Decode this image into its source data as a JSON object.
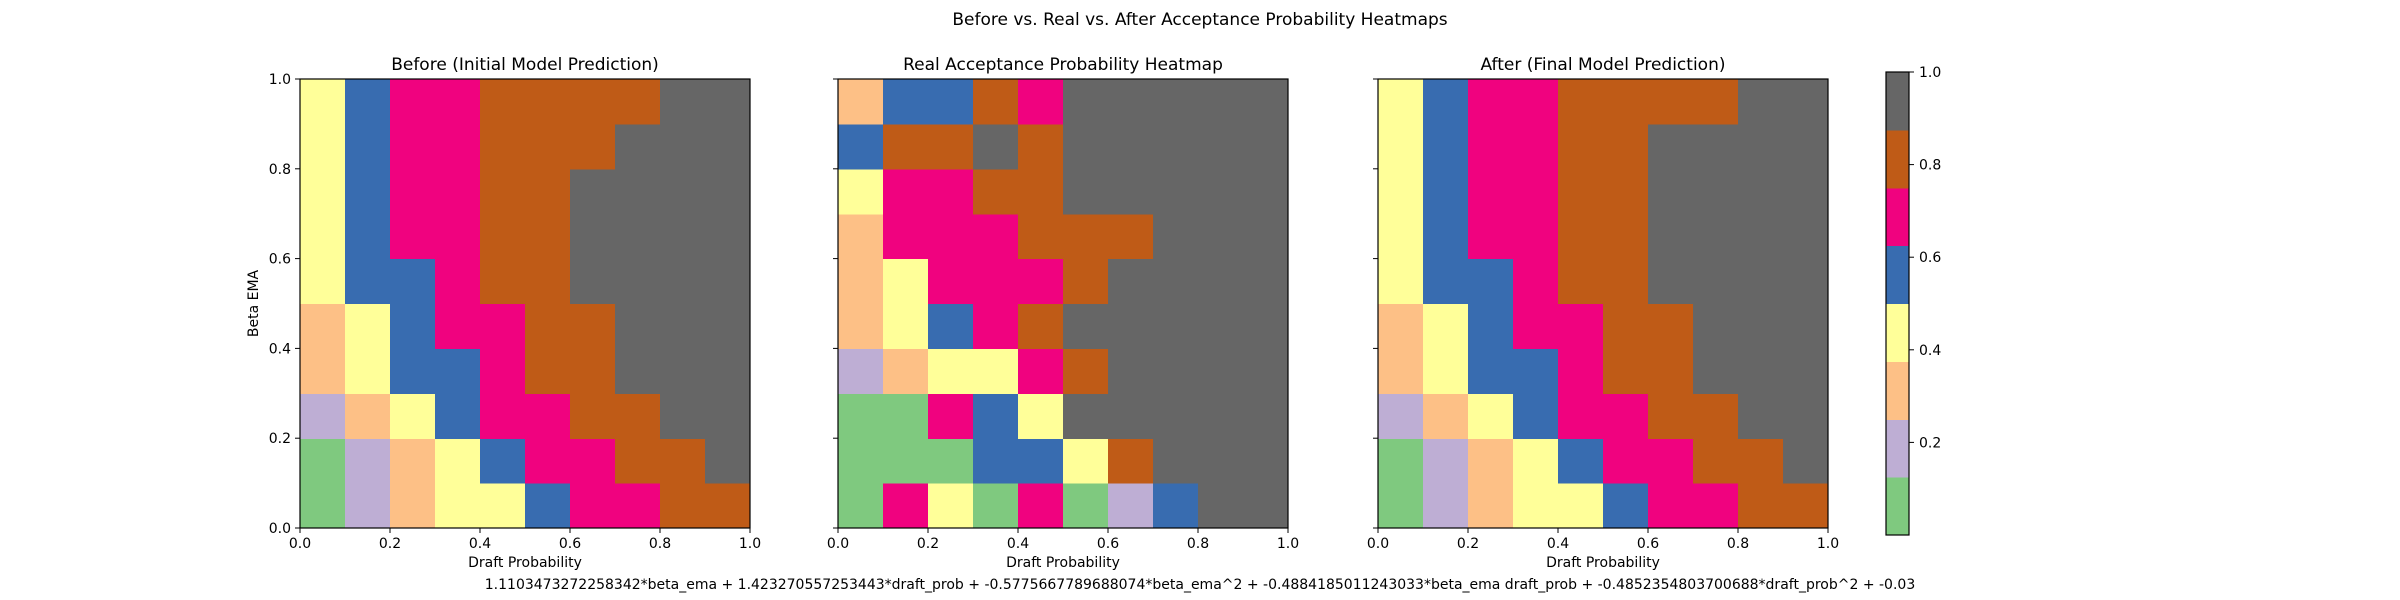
{
  "figure": {
    "suptitle": "Before vs. Real vs. After Acceptance Probability Heatmaps",
    "footer": "1.1103473272258342*beta_ema + 1.423270557253443*draft_prob + -0.5775667789688074*beta_ema^2 + -0.4884185011243033*beta_ema draft_prob + -0.4852354803700688*draft_prob^2 + -0.03"
  },
  "colorbar": {
    "colors": [
      "#7fc97f",
      "#beaed4",
      "#fdc086",
      "#ffff99",
      "#386cb0",
      "#f0027f",
      "#bf5b17",
      "#666666"
    ],
    "ticks": [
      0.2,
      0.4,
      0.6,
      0.8,
      1.0
    ],
    "tick_labels": [
      "0.2",
      "0.4",
      "0.6",
      "0.8",
      "1.0"
    ],
    "range": [
      0,
      1
    ]
  },
  "chart_data": [
    {
      "type": "heatmap",
      "title": "Before (Initial Model Prediction)",
      "xlabel": "Draft Probability",
      "ylabel": "Beta EMA",
      "xlim": [
        0,
        1
      ],
      "ylim": [
        0,
        1
      ],
      "xticks": [
        "0.0",
        "0.2",
        "0.4",
        "0.6",
        "0.8",
        "1.0"
      ],
      "yticks": [
        "0.0",
        "0.2",
        "0.4",
        "0.6",
        "0.8",
        "1.0"
      ],
      "grid_rows_bottom_to_top": [
        [
          0,
          1,
          2,
          3,
          3,
          4,
          5,
          5,
          6,
          6
        ],
        [
          0,
          1,
          2,
          3,
          4,
          5,
          5,
          6,
          6,
          7
        ],
        [
          1,
          2,
          3,
          4,
          5,
          5,
          6,
          6,
          7,
          7
        ],
        [
          2,
          3,
          4,
          4,
          5,
          6,
          6,
          7,
          7,
          7
        ],
        [
          2,
          3,
          4,
          5,
          5,
          6,
          6,
          7,
          7,
          7
        ],
        [
          3,
          4,
          4,
          5,
          6,
          6,
          7,
          7,
          7,
          7
        ],
        [
          3,
          4,
          5,
          5,
          6,
          6,
          7,
          7,
          7,
          7
        ],
        [
          3,
          4,
          5,
          5,
          6,
          6,
          7,
          7,
          7,
          7
        ],
        [
          3,
          4,
          5,
          5,
          6,
          6,
          6,
          7,
          7,
          7
        ],
        [
          3,
          4,
          5,
          5,
          6,
          6,
          6,
          6,
          7,
          7
        ]
      ]
    },
    {
      "type": "heatmap",
      "title": "Real Acceptance Probability Heatmap",
      "xlabel": "Draft Probability",
      "ylabel": "",
      "xlim": [
        0,
        1
      ],
      "ylim": [
        0,
        1
      ],
      "xticks": [
        "0.0",
        "0.2",
        "0.4",
        "0.6",
        "0.8",
        "1.0"
      ],
      "yticks": [],
      "grid_rows_bottom_to_top": [
        [
          0,
          5,
          3,
          0,
          5,
          0,
          1,
          4,
          7,
          7
        ],
        [
          0,
          0,
          0,
          4,
          4,
          3,
          6,
          7,
          7,
          7
        ],
        [
          0,
          0,
          5,
          4,
          3,
          7,
          7,
          7,
          7,
          7
        ],
        [
          1,
          2,
          3,
          3,
          5,
          6,
          7,
          7,
          7,
          7
        ],
        [
          2,
          3,
          4,
          5,
          6,
          7,
          7,
          7,
          7,
          7
        ],
        [
          2,
          3,
          5,
          5,
          5,
          6,
          7,
          7,
          7,
          7
        ],
        [
          2,
          5,
          5,
          5,
          6,
          6,
          6,
          7,
          7,
          7
        ],
        [
          3,
          5,
          5,
          6,
          6,
          7,
          7,
          7,
          7,
          7
        ],
        [
          4,
          6,
          6,
          7,
          6,
          7,
          7,
          7,
          7,
          7
        ],
        [
          2,
          4,
          4,
          6,
          5,
          7,
          7,
          7,
          7,
          7
        ]
      ]
    },
    {
      "type": "heatmap",
      "title": "After (Final Model Prediction)",
      "xlabel": "Draft Probability",
      "ylabel": "",
      "xlim": [
        0,
        1
      ],
      "ylim": [
        0,
        1
      ],
      "xticks": [
        "0.0",
        "0.2",
        "0.4",
        "0.6",
        "0.8",
        "1.0"
      ],
      "yticks": [],
      "grid_rows_bottom_to_top": [
        [
          0,
          1,
          2,
          3,
          3,
          4,
          5,
          5,
          6,
          6
        ],
        [
          0,
          1,
          2,
          3,
          4,
          5,
          5,
          6,
          6,
          7
        ],
        [
          1,
          2,
          3,
          4,
          5,
          5,
          6,
          6,
          7,
          7
        ],
        [
          2,
          3,
          4,
          4,
          5,
          6,
          6,
          7,
          7,
          7
        ],
        [
          2,
          3,
          4,
          5,
          5,
          6,
          6,
          7,
          7,
          7
        ],
        [
          3,
          4,
          4,
          5,
          6,
          6,
          7,
          7,
          7,
          7
        ],
        [
          3,
          4,
          5,
          5,
          6,
          6,
          7,
          7,
          7,
          7
        ],
        [
          3,
          4,
          5,
          5,
          6,
          6,
          7,
          7,
          7,
          7
        ],
        [
          3,
          4,
          5,
          5,
          6,
          6,
          7,
          7,
          7,
          7
        ],
        [
          3,
          4,
          5,
          5,
          6,
          6,
          6,
          6,
          7,
          7
        ]
      ]
    }
  ]
}
